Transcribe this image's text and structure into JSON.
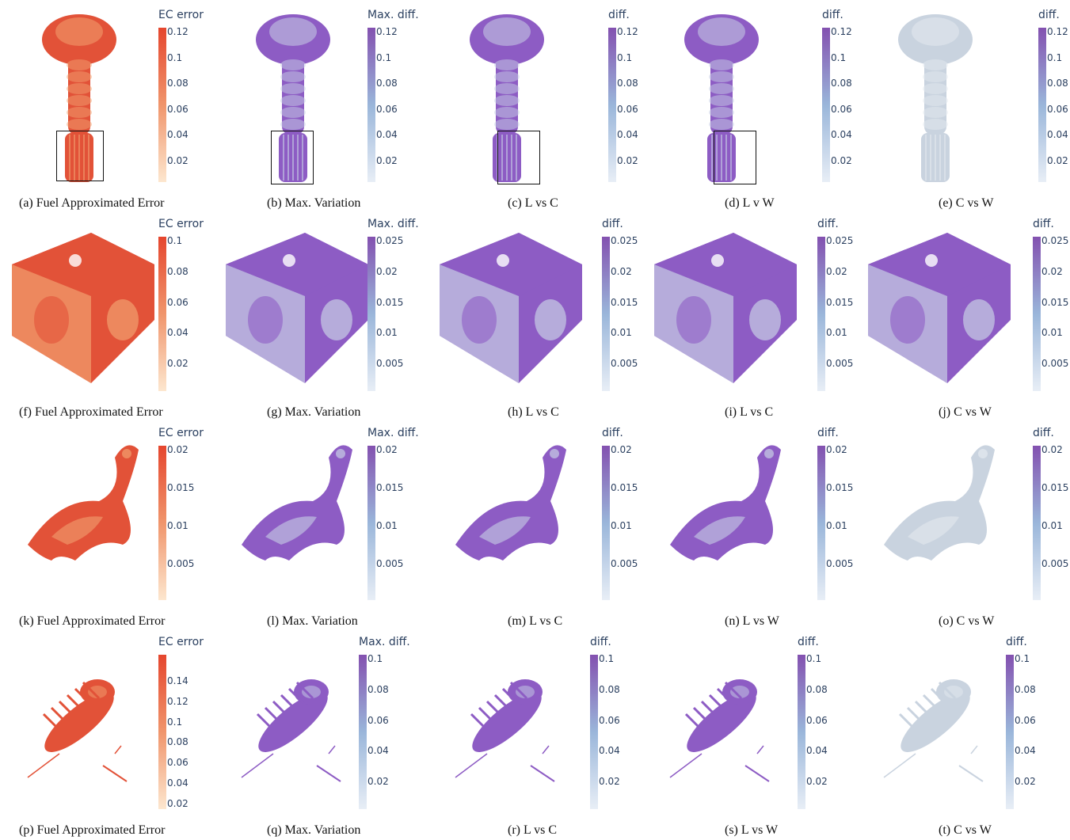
{
  "colors": {
    "ec_top": "#e5462e",
    "ec_mid": "#f0956c",
    "ec_bottom": "#fde7cf",
    "diff_top": "#8351b0",
    "diff_mid": "#9ab6da",
    "diff_bottom": "#e8eef6",
    "text": "#2a3f5f",
    "mesh_red": "#e25238",
    "mesh_orange": "#f2a06f",
    "mesh_purple": "#8d5cc4",
    "mesh_grey": "#c9d3df"
  },
  "rows": [
    {
      "model": "mushroom-column",
      "panels": [
        {
          "caption": "(a) Fuel Approximated Error",
          "bar_title": "EC error",
          "scale": "ec",
          "ticks": [
            "0.12",
            "0.1",
            "0.08",
            "0.06",
            "0.04",
            "0.02"
          ],
          "shade": "red"
        },
        {
          "caption": "(b) Max. Variation",
          "bar_title": "Max. diff.",
          "scale": "diff",
          "ticks": [
            "0.12",
            "0.1",
            "0.08",
            "0.06",
            "0.04",
            "0.02"
          ],
          "shade": "purple"
        },
        {
          "caption": "(c) L vs C",
          "bar_title": "diff.",
          "scale": "diff",
          "ticks": [
            "0.12",
            "0.1",
            "0.08",
            "0.06",
            "0.04",
            "0.02"
          ],
          "shade": "purple"
        },
        {
          "caption": "(d) L v W",
          "bar_title": "diff.",
          "scale": "diff",
          "ticks": [
            "0.12",
            "0.1",
            "0.08",
            "0.06",
            "0.04",
            "0.02"
          ],
          "shade": "purple"
        },
        {
          "caption": "(e) C vs W",
          "bar_title": "diff.",
          "scale": "diff",
          "ticks": [
            "0.12",
            "0.1",
            "0.08",
            "0.06",
            "0.04",
            "0.02"
          ],
          "shade": "grey"
        }
      ]
    },
    {
      "model": "engine-block",
      "panels": [
        {
          "caption": "(f) Fuel Approximated Error",
          "bar_title": "EC error",
          "scale": "ec",
          "ticks": [
            "0.1",
            "0.08",
            "0.06",
            "0.04",
            "0.02"
          ],
          "shade": "red"
        },
        {
          "caption": "(g) Max. Variation",
          "bar_title": "Max. diff.",
          "scale": "diff",
          "ticks": [
            "0.025",
            "0.02",
            "0.015",
            "0.01",
            "0.005"
          ],
          "shade": "purple"
        },
        {
          "caption": "(h) L vs C",
          "bar_title": "diff.",
          "scale": "diff",
          "ticks": [
            "0.025",
            "0.02",
            "0.015",
            "0.01",
            "0.005"
          ],
          "shade": "purple"
        },
        {
          "caption": "(i) L vs C",
          "bar_title": "diff.",
          "scale": "diff",
          "ticks": [
            "0.025",
            "0.02",
            "0.015",
            "0.01",
            "0.005"
          ],
          "shade": "purple"
        },
        {
          "caption": "(j) C vs W",
          "bar_title": "diff.",
          "scale": "diff",
          "ticks": [
            "0.025",
            "0.02",
            "0.015",
            "0.01",
            "0.005"
          ],
          "shade": "purple"
        }
      ]
    },
    {
      "model": "fish-sculpture",
      "panels": [
        {
          "caption": "(k) Fuel Approximated Error",
          "bar_title": "EC error",
          "scale": "ec",
          "ticks": [
            "0.02",
            "0.015",
            "0.01",
            "0.005"
          ],
          "shade": "red"
        },
        {
          "caption": "(l) Max. Variation",
          "bar_title": "Max. diff.",
          "scale": "diff",
          "ticks": [
            "0.02",
            "0.015",
            "0.01",
            "0.005"
          ],
          "shade": "purple"
        },
        {
          "caption": "(m) L vs C",
          "bar_title": "diff.",
          "scale": "diff",
          "ticks": [
            "0.02",
            "0.015",
            "0.01",
            "0.005"
          ],
          "shade": "purple"
        },
        {
          "caption": "(n) L vs W",
          "bar_title": "diff.",
          "scale": "diff",
          "ticks": [
            "0.02",
            "0.015",
            "0.01",
            "0.005"
          ],
          "shade": "purple"
        },
        {
          "caption": "(o) C vs W",
          "bar_title": "diff.",
          "scale": "diff",
          "ticks": [
            "0.02",
            "0.015",
            "0.01",
            "0.005"
          ],
          "shade": "grey"
        }
      ]
    },
    {
      "model": "lobster",
      "panels": [
        {
          "caption": "(p) Fuel Approximated Error",
          "bar_title": "EC error",
          "scale": "ec",
          "ticks": [
            "0.14",
            "0.12",
            "0.1",
            "0.08",
            "0.06",
            "0.04",
            "0.02"
          ],
          "shade": "red"
        },
        {
          "caption": "(q) Max. Variation",
          "bar_title": "Max. diff.",
          "scale": "diff",
          "ticks": [
            "0.1",
            "0.08",
            "0.06",
            "0.04",
            "0.02"
          ],
          "shade": "purple"
        },
        {
          "caption": "(r) L vs C",
          "bar_title": "diff.",
          "scale": "diff",
          "ticks": [
            "0.1",
            "0.08",
            "0.06",
            "0.04",
            "0.02"
          ],
          "shade": "purple"
        },
        {
          "caption": "(s) L vs W",
          "bar_title": "diff.",
          "scale": "diff",
          "ticks": [
            "0.1",
            "0.08",
            "0.06",
            "0.04",
            "0.02"
          ],
          "shade": "purple"
        },
        {
          "caption": "(t) C vs W",
          "bar_title": "diff.",
          "scale": "diff",
          "ticks": [
            "0.1",
            "0.08",
            "0.06",
            "0.04",
            "0.02"
          ],
          "shade": "grey"
        }
      ]
    }
  ]
}
